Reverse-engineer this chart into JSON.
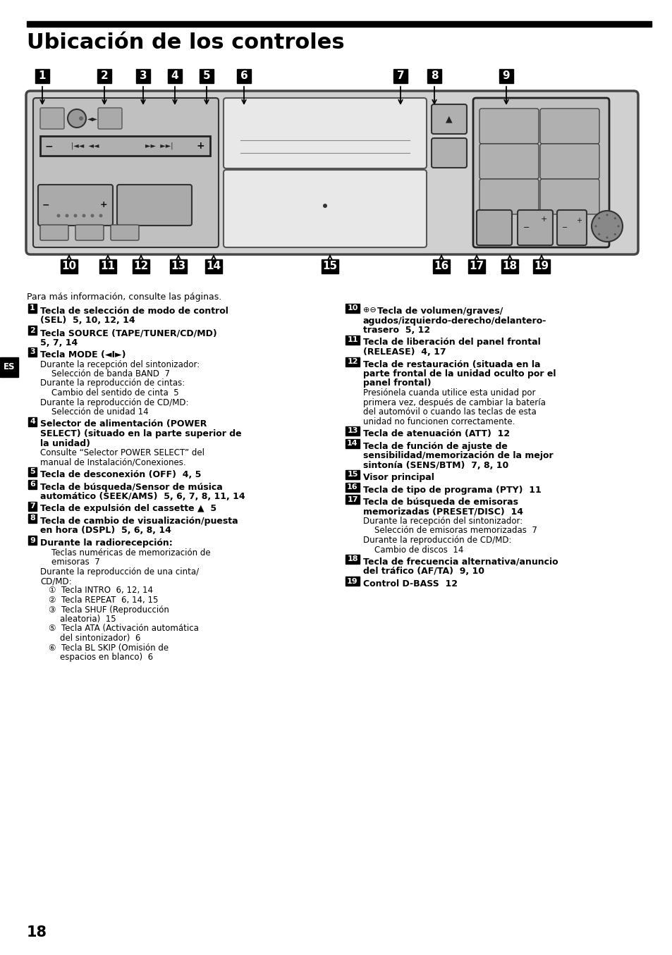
{
  "title": "Ubicación de los controles",
  "bg_color": "#ffffff",
  "title_color": "#000000",
  "header_bar_color": "#000000",
  "page_number": "18",
  "es_label": "ES",
  "intro_text": "Para más información, consulte las páginas.",
  "left_items": [
    {
      "num": "1",
      "lines": [
        {
          "bold": true,
          "text": "Tecla de selección de modo de control"
        },
        {
          "bold": true,
          "text": "(SEL)  5, 10, 12, 14"
        }
      ]
    },
    {
      "num": "2",
      "lines": [
        {
          "bold": true,
          "text": "Tecla SOURCE (TAPE/TUNER/CD/MD)"
        },
        {
          "bold": true,
          "text": "5, 7, 14"
        }
      ]
    },
    {
      "num": "3",
      "lines": [
        {
          "bold": true,
          "text": "Tecla MODE (◄I►)"
        },
        {
          "bold": false,
          "text": "Durante la recepción del sintonizador:"
        },
        {
          "bold": false,
          "indent": true,
          "text": "Selección de banda BAND  7"
        },
        {
          "bold": false,
          "text": "Durante la reproducción de cintas:"
        },
        {
          "bold": false,
          "indent": true,
          "text": "Cambio del sentido de cinta  5"
        },
        {
          "bold": false,
          "text": "Durante la reproducción de CD/MD:"
        },
        {
          "bold": false,
          "indent": true,
          "text": "Selección de unidad 14"
        }
      ]
    },
    {
      "num": "4",
      "lines": [
        {
          "bold": true,
          "text": "Selector de alimentación (POWER"
        },
        {
          "bold": true,
          "text": "SELECT) (situado en la parte superior de"
        },
        {
          "bold": true,
          "text": "la unidad)"
        },
        {
          "bold": false,
          "text": "Consulte “Selector POWER SELECT” del"
        },
        {
          "bold": false,
          "text": "manual de Instalación/Conexiones."
        }
      ]
    },
    {
      "num": "5",
      "lines": [
        {
          "bold": true,
          "text": "Tecla de desconexión (OFF)  4, 5"
        }
      ]
    },
    {
      "num": "6",
      "lines": [
        {
          "bold": true,
          "text": "Tecla de búsqueda/Sensor de música"
        },
        {
          "bold": true,
          "text": "automático (SEEK/AMS)  5, 6, 7, 8, 11, 14"
        }
      ]
    },
    {
      "num": "7",
      "lines": [
        {
          "bold": true,
          "text": "Tecla de expulsión del cassette ▲  5"
        }
      ]
    },
    {
      "num": "8",
      "lines": [
        {
          "bold": true,
          "text": "Tecla de cambio de visualización/puesta"
        },
        {
          "bold": true,
          "text": "en hora (DSPL)  5, 6, 8, 14"
        }
      ]
    },
    {
      "num": "9",
      "lines": [
        {
          "bold": true,
          "text": "Durante la radiorecepción:"
        },
        {
          "bold": false,
          "indent": true,
          "text": "Teclas numéricas de memorización de"
        },
        {
          "bold": false,
          "indent": true,
          "text": "emisoras  7"
        },
        {
          "bold": false,
          "text": "Durante la reproducción de una cinta/"
        },
        {
          "bold": false,
          "text": "CD/MD:"
        },
        {
          "bold": false,
          "indent": true,
          "circled": "1",
          "text": "Tecla INTRO  6, 12, 14"
        },
        {
          "bold": false,
          "indent": true,
          "circled": "2",
          "text": "Tecla REPEAT  6, 14, 15"
        },
        {
          "bold": false,
          "indent": true,
          "circled": "3",
          "text": "Tecla SHUF (Reproducción"
        },
        {
          "bold": false,
          "indent": true,
          "cont": true,
          "text": "aleatoria)  15"
        },
        {
          "bold": false,
          "indent": true,
          "circled": "5",
          "text": "Tecla ATA (Activación automática"
        },
        {
          "bold": false,
          "indent": true,
          "cont": true,
          "text": "del sintonizador)  6"
        },
        {
          "bold": false,
          "indent": true,
          "circled": "6",
          "text": "Tecla BL SKIP (Omisión de"
        },
        {
          "bold": false,
          "indent": true,
          "cont": true,
          "text": "espacios en blanco)  6"
        }
      ]
    }
  ],
  "right_items": [
    {
      "num": "10",
      "prefix_circle": true,
      "lines": [
        {
          "bold": true,
          "text": "Tecla de volumen/graves/"
        },
        {
          "bold": true,
          "text": "agudos/izquierdo-derecho/delantero-"
        },
        {
          "bold": true,
          "text": "trasero  5, 12"
        }
      ]
    },
    {
      "num": "11",
      "lines": [
        {
          "bold": true,
          "text": "Tecla de liberación del panel frontal"
        },
        {
          "bold": true,
          "text": "(RELEASE)  4, 17"
        }
      ]
    },
    {
      "num": "12",
      "lines": [
        {
          "bold": true,
          "text": "Tecla de restauración (situada en la"
        },
        {
          "bold": true,
          "text": "parte frontal de la unidad oculto por el"
        },
        {
          "bold": true,
          "text": "panel frontal)"
        },
        {
          "bold": false,
          "text": "Presiónela cuanda utilice esta unidad por"
        },
        {
          "bold": false,
          "text": "primera vez, después de cambiar la batería"
        },
        {
          "bold": false,
          "text": "del automóvil o cuando las teclas de esta"
        },
        {
          "bold": false,
          "text": "unidad no funcionen correctamente."
        }
      ]
    },
    {
      "num": "13",
      "lines": [
        {
          "bold": true,
          "text": "Tecla de atenuación (ATT)  12"
        }
      ]
    },
    {
      "num": "14",
      "lines": [
        {
          "bold": true,
          "text": "Tecla de función de ajuste de"
        },
        {
          "bold": true,
          "text": "sensibilidad/memorización de la mejor"
        },
        {
          "bold": true,
          "text": "sintonía (SENS/BTM)  7, 8, 10"
        }
      ]
    },
    {
      "num": "15",
      "lines": [
        {
          "bold": true,
          "text": "Visor principal"
        }
      ]
    },
    {
      "num": "16",
      "lines": [
        {
          "bold": true,
          "text": "Tecla de tipo de programa (PTY)  11"
        }
      ]
    },
    {
      "num": "17",
      "lines": [
        {
          "bold": true,
          "text": "Tecla de búsqueda de emisoras"
        },
        {
          "bold": true,
          "text": "memorizadas (PRESET/DISC)  14"
        },
        {
          "bold": false,
          "text": "Durante la recepción del sintonizador:"
        },
        {
          "bold": false,
          "indent": true,
          "text": "Selección de emisoras memorizadas  7"
        },
        {
          "bold": false,
          "text": "Durante la reproducción de CD/MD:"
        },
        {
          "bold": false,
          "indent": true,
          "text": "Cambio de discos  14"
        }
      ]
    },
    {
      "num": "18",
      "lines": [
        {
          "bold": true,
          "text": "Tecla de frecuencia alternativa/anuncio"
        },
        {
          "bold": true,
          "text": "del tráfico (AF/TA)  9, 10"
        }
      ]
    },
    {
      "num": "19",
      "lines": [
        {
          "bold": true,
          "text": "Control D-BASS  12"
        }
      ]
    }
  ]
}
